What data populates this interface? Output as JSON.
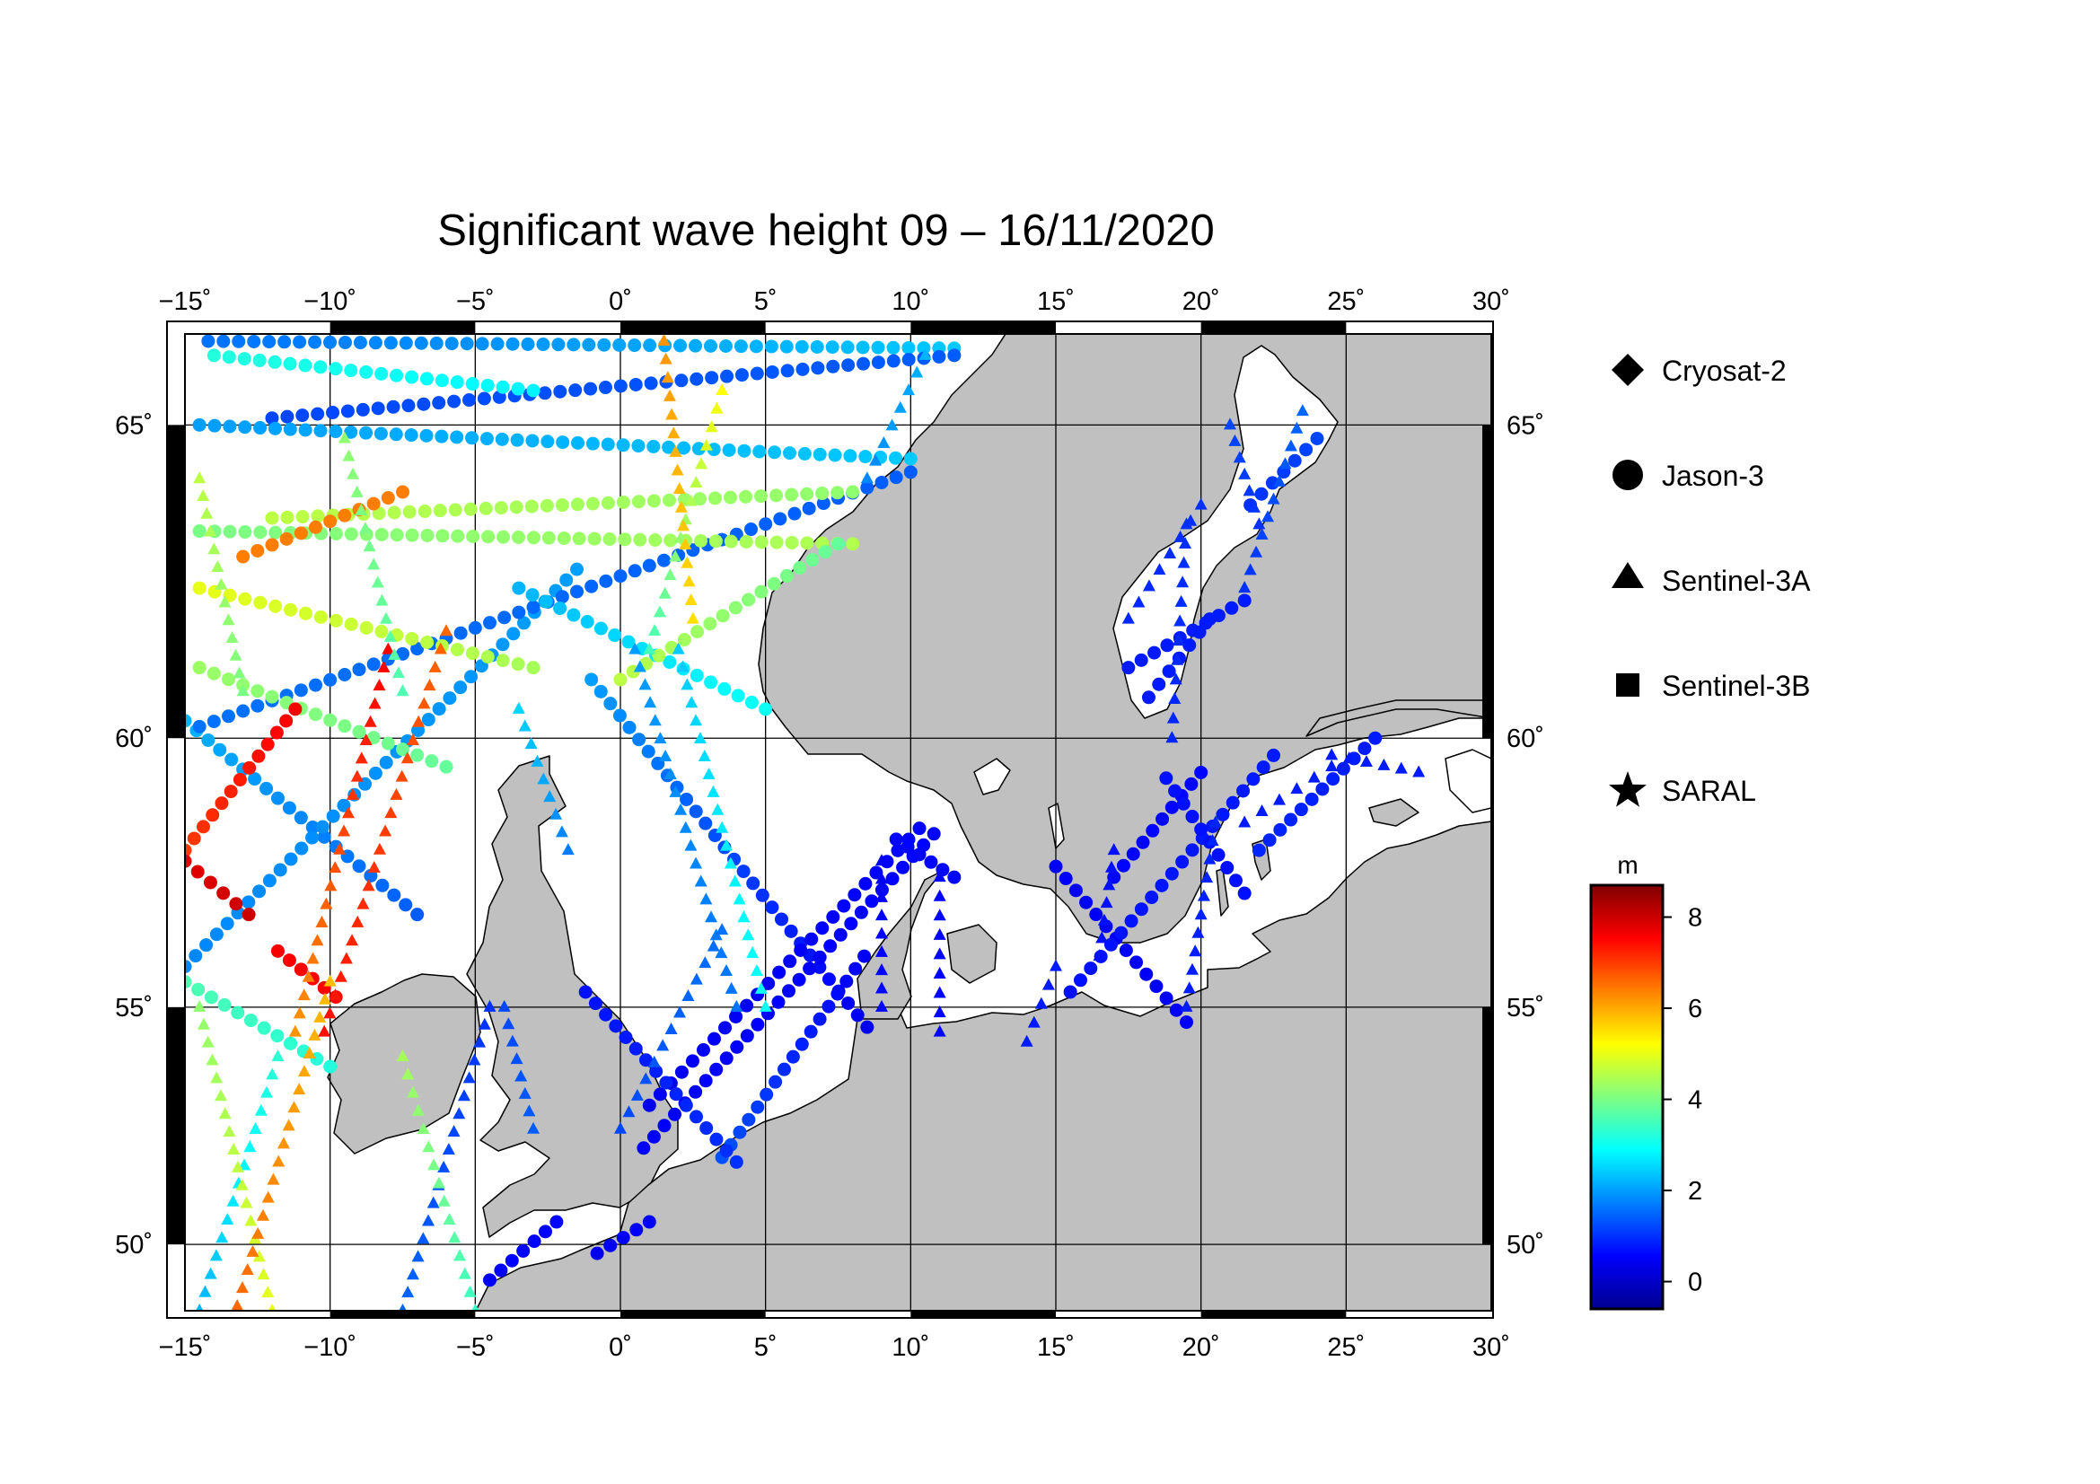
{
  "title": "Significant wave height 09 – 16/11/2020",
  "map": {
    "lon_range": [
      -15,
      30
    ],
    "lat_range": [
      48.5,
      66.3
    ],
    "lon_ticks": [
      -15,
      -10,
      -5,
      0,
      5,
      10,
      15,
      20,
      25,
      30
    ],
    "lon_tick_labels": [
      "−15˚",
      "−10˚",
      "−5˚",
      "0˚",
      "5˚",
      "10˚",
      "15˚",
      "20˚",
      "25˚",
      "30˚"
    ],
    "lat_ticks": [
      50,
      55,
      60,
      65
    ],
    "lat_tick_labels": [
      "50˚",
      "55˚",
      "60˚",
      "65˚"
    ],
    "land_color": "#c0c0c0",
    "sea_color": "#ffffff"
  },
  "legend": {
    "items": [
      {
        "label": "Cryosat-2",
        "symbol": "diamond"
      },
      {
        "label": "Jason-3",
        "symbol": "circle"
      },
      {
        "label": "Sentinel-3A",
        "symbol": "triangle"
      },
      {
        "label": "Sentinel-3B",
        "symbol": "square"
      },
      {
        "label": "SARAL",
        "symbol": "star"
      }
    ]
  },
  "colorbar": {
    "unit": "m",
    "range": [
      -0.6,
      8.7
    ],
    "ticks": [
      0,
      2,
      4,
      6,
      8
    ],
    "tick_labels": [
      "0",
      "2",
      "4",
      "6",
      "8"
    ],
    "stops": [
      "#00008f",
      "#0000ff",
      "#0080ff",
      "#00ffff",
      "#80ff80",
      "#ffff00",
      "#ff8000",
      "#ff0000",
      "#800000"
    ]
  },
  "chart_data": {
    "type": "scatter",
    "title": "Significant wave height 09 – 16/11/2020",
    "value_unit": "m",
    "tracks": [
      {
        "sat": "Jason-3",
        "from": [
          19.5,
          54.7
        ],
        "to": [
          15.0,
          57.7
        ],
        "v0": 0.5,
        "v1": 0.5
      },
      {
        "sat": "Jason-3",
        "from": [
          15.5,
          55.3
        ],
        "to": [
          22.5,
          59.7
        ],
        "v0": 0.7,
        "v1": 0.8
      },
      {
        "sat": "Jason-3",
        "from": [
          17.0,
          57.5
        ],
        "to": [
          20.0,
          59.4
        ],
        "v0": 0.6,
        "v1": 0.6
      },
      {
        "sat": "Jason-3",
        "from": [
          21.5,
          57.2
        ],
        "to": [
          18.8,
          59.3
        ],
        "v0": 0.7,
        "v1": 0.7
      },
      {
        "sat": "Jason-3",
        "from": [
          22.0,
          58.0
        ],
        "to": [
          26.0,
          60.0
        ],
        "v0": 0.9,
        "v1": 0.8
      },
      {
        "sat": "Jason-3",
        "from": [
          17.5,
          61.2
        ],
        "to": [
          21.5,
          62.3
        ],
        "v0": 0.8,
        "v1": 0.8
      },
      {
        "sat": "Jason-3",
        "from": [
          18.2,
          60.7
        ],
        "to": [
          20.3,
          62.0
        ],
        "v0": 0.8,
        "v1": 0.8
      },
      {
        "sat": "Jason-3",
        "from": [
          21.7,
          63.8
        ],
        "to": [
          24.0,
          64.8
        ],
        "v0": 1.0,
        "v1": 1.2
      },
      {
        "sat": "Jason-3",
        "from": [
          8.5,
          54.6
        ],
        "to": [
          -1.0,
          61.0
        ],
        "v0": 0.4,
        "v1": 2.0
      },
      {
        "sat": "Jason-3",
        "from": [
          10.3,
          58.4
        ],
        "to": [
          1.0,
          53.0
        ],
        "v0": 0.6,
        "v1": 0.4
      },
      {
        "sat": "Jason-3",
        "from": [
          8.4,
          56.0
        ],
        "to": [
          3.5,
          51.9
        ],
        "v0": 0.5,
        "v1": 1.3
      },
      {
        "sat": "Jason-3",
        "from": [
          0.8,
          52.1
        ],
        "to": [
          10.8,
          58.3
        ],
        "v0": 0.5,
        "v1": 0.6
      },
      {
        "sat": "Jason-3",
        "from": [
          9.5,
          58.2
        ],
        "to": [
          11.5,
          57.5
        ],
        "v0": 0.6,
        "v1": 0.6
      },
      {
        "sat": "Jason-3",
        "from": [
          -1.2,
          55.3
        ],
        "to": [
          4.0,
          51.8
        ],
        "v0": 0.7,
        "v1": 1.0
      },
      {
        "sat": "Jason-3",
        "from": [
          -4.5,
          49.2
        ],
        "to": [
          -2.2,
          50.5
        ],
        "v0": 0.5,
        "v1": 0.6
      },
      {
        "sat": "Jason-3",
        "from": [
          -0.8,
          49.8
        ],
        "to": [
          1.0,
          50.5
        ],
        "v0": 0.4,
        "v1": 0.5
      },
      {
        "sat": "Jason-3",
        "from": [
          -15.0,
          60.3
        ],
        "to": [
          -7.0,
          56.8
        ],
        "v0": 2.2,
        "v1": 1.4
      },
      {
        "sat": "Jason-3",
        "from": [
          -15.0,
          55.8
        ],
        "to": [
          -1.5,
          62.8
        ],
        "v0": 1.8,
        "v1": 2.0
      },
      {
        "sat": "Jason-3",
        "from": [
          -14.5,
          60.2
        ],
        "to": [
          10.0,
          64.3
        ],
        "v0": 1.6,
        "v1": 1.4
      },
      {
        "sat": "Jason-3",
        "from": [
          -3.5,
          62.5
        ],
        "to": [
          5.0,
          60.5
        ],
        "v0": 2.2,
        "v1": 3.0
      },
      {
        "sat": "Jason-3",
        "from": [
          -14.2,
          66.2
        ],
        "to": [
          11.5,
          66.1
        ],
        "v0": 1.6,
        "v1": 2.4
      },
      {
        "sat": "Jason-3",
        "from": [
          -12.0,
          65.1
        ],
        "to": [
          11.5,
          66.0
        ],
        "v0": 1.2,
        "v1": 1.4
      },
      {
        "sat": "Jason-3",
        "from": [
          -14.5,
          65.0
        ],
        "to": [
          10.0,
          64.5
        ],
        "v0": 2.0,
        "v1": 2.4
      },
      {
        "sat": "Jason-3",
        "from": [
          -14.0,
          66.0
        ],
        "to": [
          -3.0,
          65.5
        ],
        "v0": 3.2,
        "v1": 2.8
      },
      {
        "sat": "Jason-3",
        "from": [
          -12.0,
          63.6
        ],
        "to": [
          8.0,
          64.0
        ],
        "v0": 4.6,
        "v1": 4.2
      },
      {
        "sat": "Jason-3",
        "from": [
          -14.5,
          63.4
        ],
        "to": [
          8.0,
          63.2
        ],
        "v0": 4.0,
        "v1": 4.5
      },
      {
        "sat": "Jason-3",
        "from": [
          -14.5,
          62.5
        ],
        "to": [
          -3.0,
          61.2
        ],
        "v0": 5.0,
        "v1": 4.4
      },
      {
        "sat": "Jason-3",
        "from": [
          -14.5,
          61.2
        ],
        "to": [
          -6.0,
          59.5
        ],
        "v0": 4.3,
        "v1": 3.8
      },
      {
        "sat": "Jason-3",
        "from": [
          0.0,
          61.0
        ],
        "to": [
          7.5,
          63.2
        ],
        "v0": 4.6,
        "v1": 3.8
      },
      {
        "sat": "Jason-3",
        "from": [
          -15.0,
          58.0
        ],
        "to": [
          -11.2,
          60.5
        ],
        "v0": 7.0,
        "v1": 7.6
      },
      {
        "sat": "Jason-3",
        "from": [
          -15.0,
          57.8
        ],
        "to": [
          -12.8,
          56.8
        ],
        "v0": 7.8,
        "v1": 8.0
      },
      {
        "sat": "Jason-3",
        "from": [
          -11.8,
          56.1
        ],
        "to": [
          -9.8,
          55.2
        ],
        "v0": 7.6,
        "v1": 7.5
      },
      {
        "sat": "Jason-3",
        "from": [
          -13.0,
          63.0
        ],
        "to": [
          -7.5,
          64.0
        ],
        "v0": 6.4,
        "v1": 6.4
      },
      {
        "sat": "Jason-3",
        "from": [
          -15.0,
          55.5
        ],
        "to": [
          -10.0,
          53.8
        ],
        "v0": 3.6,
        "v1": 3.2
      },
      {
        "sat": "Sentinel-3A",
        "from": [
          -14.5,
          48.5
        ],
        "to": [
          -11.8,
          54.0
        ],
        "v0": 2.2,
        "v1": 3.3
      },
      {
        "sat": "Sentinel-3A",
        "from": [
          -12.0,
          48.5
        ],
        "to": [
          -14.5,
          55.0
        ],
        "v0": 5.0,
        "v1": 4.2
      },
      {
        "sat": "Sentinel-3A",
        "from": [
          -13.2,
          48.6
        ],
        "to": [
          -10.0,
          55.5
        ],
        "v0": 6.6,
        "v1": 5.8
      },
      {
        "sat": "Sentinel-3A",
        "from": [
          -10.2,
          54.5
        ],
        "to": [
          -6.0,
          61.8
        ],
        "v0": 7.4,
        "v1": 6.6
      },
      {
        "sat": "Sentinel-3A",
        "from": [
          -8.0,
          61.5
        ],
        "to": [
          -11.2,
          54.5
        ],
        "v0": 7.6,
        "v1": 6.2
      },
      {
        "sat": "Sentinel-3A",
        "from": [
          -7.5,
          48.5
        ],
        "to": [
          -4.5,
          55.0
        ],
        "v0": 1.5,
        "v1": 1.0
      },
      {
        "sat": "Sentinel-3A",
        "from": [
          -5.0,
          48.5
        ],
        "to": [
          -7.5,
          54.0
        ],
        "v0": 3.4,
        "v1": 4.4
      },
      {
        "sat": "Sentinel-3A",
        "from": [
          -4.0,
          55.0
        ],
        "to": [
          -3.0,
          52.5
        ],
        "v0": 1.2,
        "v1": 1.4
      },
      {
        "sat": "Sentinel-3A",
        "from": [
          0.5,
          61.5
        ],
        "to": [
          4.0,
          55.0
        ],
        "v0": 2.0,
        "v1": 1.6
      },
      {
        "sat": "Sentinel-3A",
        "from": [
          2.0,
          61.5
        ],
        "to": [
          5.0,
          55.0
        ],
        "v0": 2.4,
        "v1": 3.0
      },
      {
        "sat": "Sentinel-3A",
        "from": [
          3.5,
          56.5
        ],
        "to": [
          0.0,
          52.5
        ],
        "v0": 1.6,
        "v1": 1.2
      },
      {
        "sat": "Sentinel-3A",
        "from": [
          -3.5,
          60.5
        ],
        "to": [
          -1.8,
          58.0
        ],
        "v0": 2.5,
        "v1": 1.7
      },
      {
        "sat": "Sentinel-3A",
        "from": [
          3.5,
          65.5
        ],
        "to": [
          1.0,
          61.5
        ],
        "v0": 5.2,
        "v1": 3.5
      },
      {
        "sat": "Sentinel-3A",
        "from": [
          1.5,
          66.2
        ],
        "to": [
          2.5,
          62.0
        ],
        "v0": 6.2,
        "v1": 5.5
      },
      {
        "sat": "Sentinel-3A",
        "from": [
          -14.5,
          64.2
        ],
        "to": [
          -13.0,
          60.8
        ],
        "v0": 4.6,
        "v1": 4.0
      },
      {
        "sat": "Sentinel-3A",
        "from": [
          -9.5,
          64.8
        ],
        "to": [
          -7.5,
          60.8
        ],
        "v0": 4.2,
        "v1": 3.6
      },
      {
        "sat": "Sentinel-3A",
        "from": [
          9.0,
          57.8
        ],
        "to": [
          9.0,
          55.0
        ],
        "v0": 0.5,
        "v1": 0.6
      },
      {
        "sat": "Sentinel-3A",
        "from": [
          11.0,
          54.5
        ],
        "to": [
          11.0,
          57.5
        ],
        "v0": 0.6,
        "v1": 0.6
      },
      {
        "sat": "Sentinel-3A",
        "from": [
          14.0,
          54.3
        ],
        "to": [
          15.0,
          55.8
        ],
        "v0": 0.8,
        "v1": 0.8
      },
      {
        "sat": "Sentinel-3A",
        "from": [
          16.5,
          56.0
        ],
        "to": [
          17.0,
          58.0
        ],
        "v0": 0.7,
        "v1": 0.7
      },
      {
        "sat": "Sentinel-3A",
        "from": [
          19.5,
          55.0
        ],
        "to": [
          20.5,
          58.5
        ],
        "v0": 0.8,
        "v1": 0.9
      },
      {
        "sat": "Sentinel-3A",
        "from": [
          21.5,
          58.5
        ],
        "to": [
          24.5,
          59.5
        ],
        "v0": 0.8,
        "v1": 0.8
      },
      {
        "sat": "Sentinel-3A",
        "from": [
          19.0,
          60.0
        ],
        "to": [
          19.5,
          63.5
        ],
        "v0": 0.9,
        "v1": 1.0
      },
      {
        "sat": "Sentinel-3A",
        "from": [
          17.5,
          62.0
        ],
        "to": [
          20.0,
          63.8
        ],
        "v0": 0.9,
        "v1": 1.0
      },
      {
        "sat": "Sentinel-3A",
        "from": [
          21.5,
          62.5
        ],
        "to": [
          23.5,
          65.2
        ],
        "v0": 1.0,
        "v1": 1.5
      },
      {
        "sat": "Sentinel-3A",
        "from": [
          22.0,
          63.5
        ],
        "to": [
          21.0,
          65.0
        ],
        "v0": 1.0,
        "v1": 1.2
      },
      {
        "sat": "Sentinel-3A",
        "from": [
          8.5,
          64.2
        ],
        "to": [
          10.5,
          66.0
        ],
        "v0": 1.8,
        "v1": 2.2
      },
      {
        "sat": "Sentinel-3A",
        "from": [
          24.5,
          59.7
        ],
        "to": [
          27.5,
          59.4
        ],
        "v0": 0.8,
        "v1": 0.8
      }
    ]
  }
}
